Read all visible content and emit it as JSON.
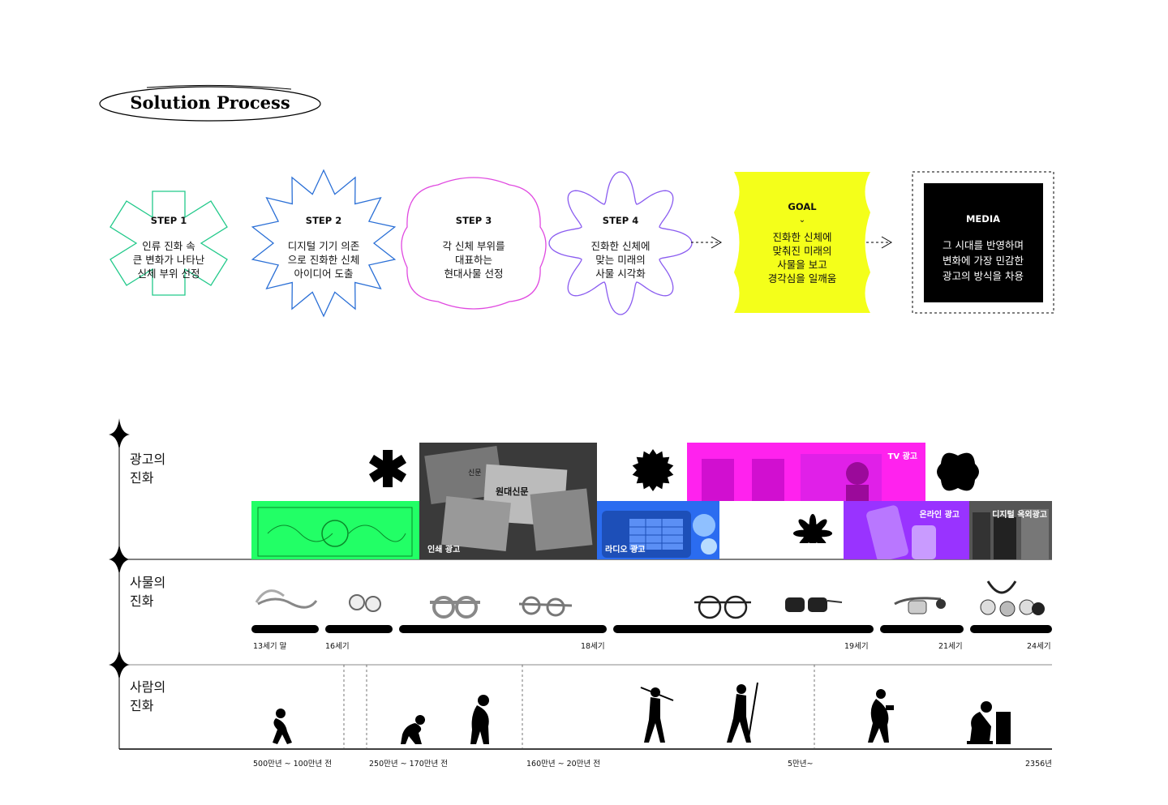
{
  "title": "Solution Process",
  "steps": [
    {
      "label": "STEP 1",
      "desc": "인류 진화 속\n큰 변화가 나타난\n신체 부위 선정",
      "color": "#22c98a"
    },
    {
      "label": "STEP 2",
      "desc": "디지털 기기 의존\n으로 진화한 신체\n아이디어 도출",
      "color": "#2a6fd6"
    },
    {
      "label": "STEP 3",
      "desc": "각 신체 부위를\n대표하는\n현대사물 선정",
      "color": "#e04ae0"
    },
    {
      "label": "STEP 4",
      "desc": "진화한 신체에\n맞는 미래의\n사물 시각화",
      "color": "#8a5cf0"
    }
  ],
  "goal": {
    "label": "GOAL",
    "desc": "진화한 신체에\n맞춰진 미래의\n사물을 보고\n경각심을 일깨움",
    "color": "#f4ff1a"
  },
  "media": {
    "label": "MEDIA",
    "desc": "그 시대를 반영하며\n변화에 가장 민감한\n광고의 방식을 차용"
  },
  "rows": {
    "ad": "광고의\n진화",
    "object": "사물의\n진화",
    "human": "사람의\n진화"
  },
  "ad_panels": {
    "print": "인쇄 광고",
    "radio": "라디오 광고",
    "tv": "TV 광고",
    "online": "온라인 광고",
    "digital_outdoor": "디지털 옥외광고"
  },
  "newspaper_headlines": [
    "원대신문",
    "신문"
  ],
  "object_ticks": [
    "13세기 말",
    "16세기",
    "18세기",
    "19세기",
    "21세기",
    "24세기"
  ],
  "human_ticks": [
    "500만년 ~ 100만년 전",
    "250만년 ~ 170만년 전",
    "160만년 ~ 20만년 전",
    "5만년~",
    "2356년"
  ],
  "colors": {
    "green": "#22ff66",
    "magenta": "#ff22ee",
    "blue": "#2b6cf0",
    "purple": "#9933ff",
    "yellow": "#f4ff1a"
  }
}
